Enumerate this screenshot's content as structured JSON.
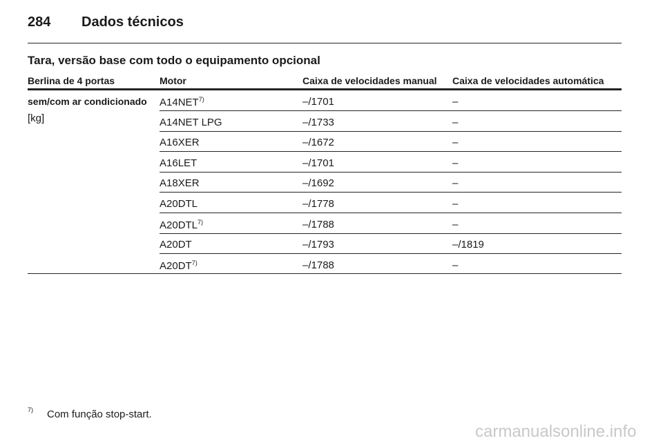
{
  "header": {
    "page_number": "284",
    "title": "Dados técnicos"
  },
  "section_title": "Tara, versão base com todo o equipamento opcional",
  "table": {
    "headers": [
      "Berlina de 4 portas",
      "Motor",
      "Caixa de velocidades manual",
      "Caixa de velocidades automática"
    ],
    "first_cell": [
      "sem/com ar condicionado",
      "[kg]"
    ],
    "rows": [
      {
        "engine": "A14NET",
        "note": "7)",
        "manual": "–/1701",
        "automatic": "–"
      },
      {
        "engine": "A14NET LPG",
        "manual": "–/1733",
        "automatic": "–"
      },
      {
        "engine": "A16XER",
        "manual": "–/1672",
        "automatic": "–"
      },
      {
        "engine": "A16LET",
        "manual": "–/1701",
        "automatic": "–"
      },
      {
        "engine": "A18XER",
        "manual": "–/1692",
        "automatic": "–"
      },
      {
        "engine": "A20DTL",
        "manual": "–/1778",
        "automatic": "–"
      },
      {
        "engine": "A20DTL",
        "note": "7)",
        "manual": "–/1788",
        "automatic": "–"
      },
      {
        "engine": "A20DT",
        "manual": "–/1793",
        "automatic": "–/1819"
      },
      {
        "engine": "A20DT",
        "note": "7)",
        "manual": "–/1788",
        "automatic": "–"
      }
    ]
  },
  "footnote": {
    "mark": "7)",
    "text": "Com função stop-start."
  },
  "watermark": "carmanualsonline.info"
}
